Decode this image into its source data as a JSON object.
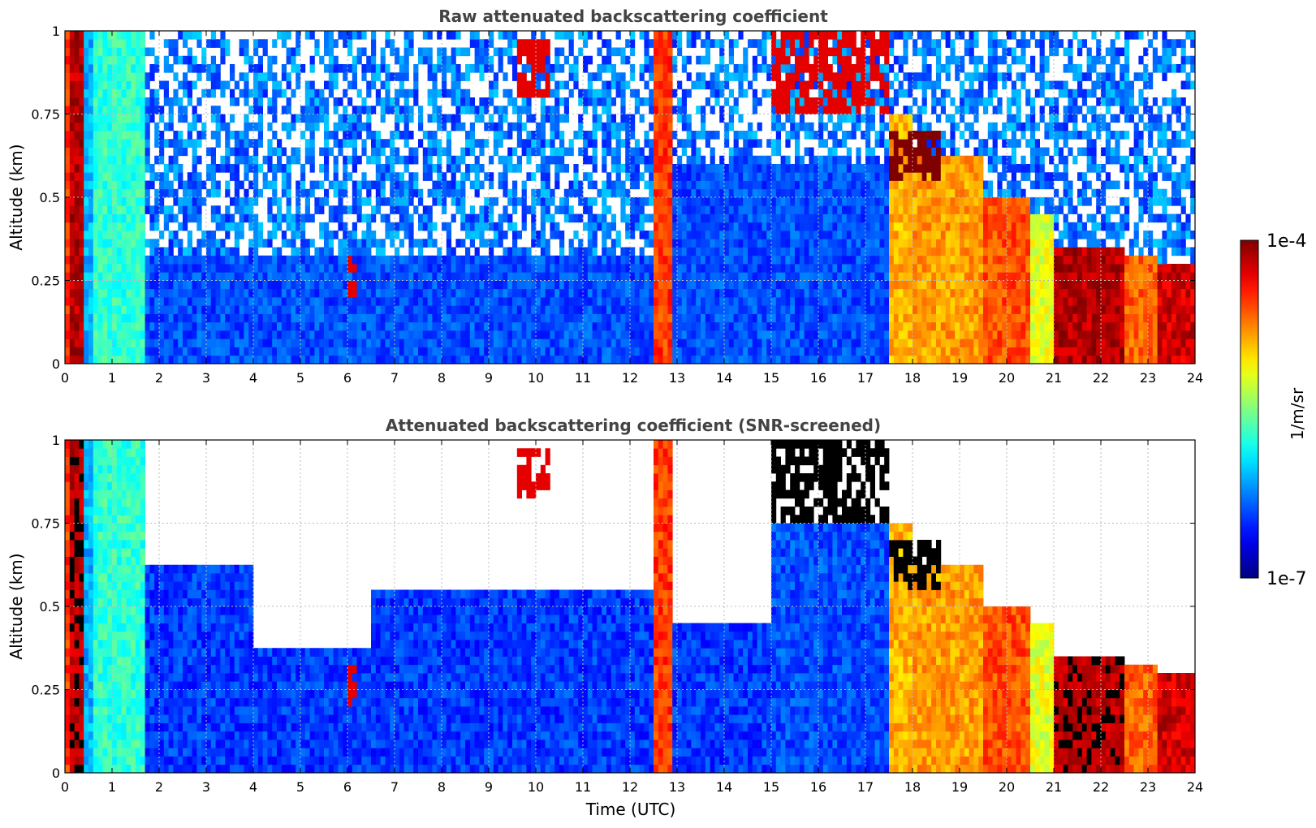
{
  "chart_data": [
    {
      "type": "heatmap",
      "title": "Raw attenuated backscattering coefficient",
      "xlabel": "",
      "ylabel": "Altitude (km)",
      "xlim": [
        0,
        24
      ],
      "ylim": [
        0,
        1
      ],
      "xticks": [
        "0",
        "1",
        "2",
        "3",
        "4",
        "5",
        "6",
        "7",
        "8",
        "9",
        "10",
        "11",
        "12",
        "13",
        "14",
        "15",
        "16",
        "17",
        "18",
        "19",
        "20",
        "21",
        "22",
        "23",
        "24"
      ],
      "yticks": [
        "0",
        "0.25",
        "0.5",
        "0.75",
        "1"
      ],
      "grid": true,
      "noise_fraction": 0.75,
      "segments": [
        {
          "t0": 0.0,
          "t1": 0.08,
          "level": 0.82,
          "top": 1.0
        },
        {
          "t0": 0.08,
          "t1": 0.4,
          "level": 0.95,
          "top": 1.0
        },
        {
          "t0": 0.4,
          "t1": 0.55,
          "level": 0.3,
          "top": 1.0
        },
        {
          "t0": 0.55,
          "t1": 1.7,
          "level": 0.42,
          "top": 1.0
        },
        {
          "t0": 1.7,
          "t1": 12.55,
          "level": 0.2,
          "top": 0.32
        },
        {
          "t0": 12.55,
          "t1": 12.95,
          "level": 0.82,
          "top": 1.0
        },
        {
          "t0": 12.95,
          "t1": 17.5,
          "level": 0.2,
          "top": 0.6
        },
        {
          "t0": 17.5,
          "t1": 18.0,
          "level": 0.7,
          "top": 0.75
        },
        {
          "t0": 18.0,
          "t1": 19.5,
          "level": 0.72,
          "top": 0.62
        },
        {
          "t0": 19.5,
          "t1": 20.5,
          "level": 0.8,
          "top": 0.5
        },
        {
          "t0": 20.5,
          "t1": 21.0,
          "level": 0.6,
          "top": 0.45
        },
        {
          "t0": 21.0,
          "t1": 22.5,
          "level": 0.95,
          "top": 0.35
        },
        {
          "t0": 22.5,
          "t1": 23.2,
          "level": 0.78,
          "top": 0.33
        },
        {
          "t0": 23.2,
          "t1": 24.0,
          "level": 0.92,
          "top": 0.3
        }
      ],
      "clouds": [
        {
          "t0": 9.6,
          "t1": 10.3,
          "h0": 0.8,
          "h1": 0.98,
          "level": 0.9
        },
        {
          "t0": 6.0,
          "t1": 6.2,
          "h0": 0.2,
          "h1": 0.32,
          "level": 0.9
        },
        {
          "t0": 15.0,
          "t1": 17.5,
          "h0": 0.75,
          "h1": 1.0,
          "level": 0.9
        },
        {
          "t0": 17.5,
          "t1": 18.6,
          "h0": 0.55,
          "h1": 0.7,
          "level": 1.0
        }
      ]
    },
    {
      "type": "heatmap",
      "title": "Attenuated backscattering coefficient (SNR-screened)",
      "xlabel": "Time (UTC)",
      "ylabel": "Altitude (km)",
      "xlim": [
        0,
        24
      ],
      "ylim": [
        0,
        1
      ],
      "xticks": [
        "0",
        "1",
        "2",
        "3",
        "4",
        "5",
        "6",
        "7",
        "8",
        "9",
        "10",
        "11",
        "12",
        "13",
        "14",
        "15",
        "16",
        "17",
        "18",
        "19",
        "20",
        "21",
        "22",
        "23",
        "24"
      ],
      "yticks": [
        "0",
        "0.25",
        "0.5",
        "0.75",
        "1"
      ],
      "grid": true,
      "noise_fraction": 0.0,
      "segments": [
        {
          "t0": 0.0,
          "t1": 0.08,
          "level": 0.82,
          "top": 1.0
        },
        {
          "t0": 0.08,
          "t1": 0.4,
          "level": 0.95,
          "top": 1.0
        },
        {
          "t0": 0.4,
          "t1": 0.55,
          "level": 0.3,
          "top": 1.0
        },
        {
          "t0": 0.55,
          "t1": 1.7,
          "level": 0.42,
          "top": 1.0
        },
        {
          "t0": 1.7,
          "t1": 4.0,
          "level": 0.18,
          "top": 0.62
        },
        {
          "t0": 4.0,
          "t1": 6.5,
          "level": 0.18,
          "top": 0.38
        },
        {
          "t0": 6.5,
          "t1": 12.55,
          "level": 0.18,
          "top": 0.55
        },
        {
          "t0": 12.55,
          "t1": 12.95,
          "level": 0.82,
          "top": 1.0
        },
        {
          "t0": 12.95,
          "t1": 15.0,
          "level": 0.18,
          "top": 0.45
        },
        {
          "t0": 15.0,
          "t1": 17.5,
          "level": 0.2,
          "top": 0.75
        },
        {
          "t0": 17.5,
          "t1": 18.0,
          "level": 0.7,
          "top": 0.75
        },
        {
          "t0": 18.0,
          "t1": 19.5,
          "level": 0.72,
          "top": 0.62
        },
        {
          "t0": 19.5,
          "t1": 20.5,
          "level": 0.8,
          "top": 0.5
        },
        {
          "t0": 20.5,
          "t1": 21.0,
          "level": 0.6,
          "top": 0.45
        },
        {
          "t0": 21.0,
          "t1": 22.5,
          "level": 0.95,
          "top": 0.35
        },
        {
          "t0": 22.5,
          "t1": 23.2,
          "level": 0.78,
          "top": 0.33
        },
        {
          "t0": 23.2,
          "t1": 24.0,
          "level": 0.92,
          "top": 0.3
        }
      ],
      "clouds": [
        {
          "t0": 9.6,
          "t1": 10.3,
          "h0": 0.82,
          "h1": 0.98,
          "level": 0.9
        },
        {
          "t0": 6.0,
          "t1": 6.2,
          "h0": 0.2,
          "h1": 0.32,
          "level": 0.9
        },
        {
          "t0": 15.0,
          "t1": 17.5,
          "h0": 0.75,
          "h1": 1.0,
          "level": 1.0
        },
        {
          "t0": 17.5,
          "t1": 18.6,
          "h0": 0.55,
          "h1": 0.7,
          "level": 1.0
        }
      ]
    }
  ],
  "colorbar": {
    "label": "1/m/sr",
    "max_label": "1e-4",
    "min_label": "1e-7",
    "colormap": "jet"
  }
}
